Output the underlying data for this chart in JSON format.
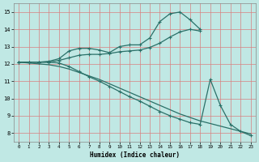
{
  "xlabel": "Humidex (Indice chaleur)",
  "bg_color": "#c0e8e4",
  "line_color": "#2a7068",
  "grid_color": "#d88080",
  "xlim": [
    -0.5,
    23.5
  ],
  "ylim": [
    7.5,
    15.5
  ],
  "xticks": [
    0,
    1,
    2,
    3,
    4,
    5,
    6,
    7,
    8,
    9,
    10,
    11,
    12,
    13,
    14,
    15,
    16,
    17,
    18,
    19,
    20,
    21,
    22,
    23
  ],
  "yticks": [
    8,
    9,
    10,
    11,
    12,
    13,
    14,
    15
  ],
  "line1_x": [
    0,
    1,
    2,
    3,
    4,
    5,
    6,
    7,
    8,
    9,
    10,
    11,
    12,
    13,
    14,
    15,
    16,
    17,
    18
  ],
  "line1_y": [
    12.1,
    12.1,
    12.1,
    12.15,
    12.3,
    12.75,
    12.9,
    12.9,
    12.8,
    12.65,
    13.0,
    13.1,
    13.1,
    13.5,
    14.45,
    14.9,
    15.0,
    14.55,
    14.0
  ],
  "line2_x": [
    0,
    1,
    2,
    3,
    4,
    5,
    6,
    7,
    8,
    9,
    10,
    11,
    12,
    13,
    14,
    15,
    16,
    17,
    18
  ],
  "line2_y": [
    12.1,
    12.1,
    12.1,
    12.1,
    12.2,
    12.35,
    12.5,
    12.55,
    12.55,
    12.6,
    12.7,
    12.75,
    12.8,
    12.95,
    13.2,
    13.55,
    13.85,
    14.0,
    13.9
  ],
  "line3_x": [
    0,
    1,
    2,
    3,
    4,
    5,
    6,
    7,
    8,
    9,
    10,
    11,
    12,
    13,
    14,
    15,
    16,
    17,
    18,
    19,
    20,
    21,
    22,
    23
  ],
  "line3_y": [
    12.1,
    12.1,
    12.1,
    12.1,
    12.05,
    11.85,
    11.55,
    11.25,
    11.0,
    10.7,
    10.4,
    10.1,
    9.85,
    9.55,
    9.25,
    9.0,
    8.8,
    8.6,
    8.5,
    11.1,
    9.6,
    8.5,
    8.1,
    7.85
  ],
  "line4_x": [
    0,
    1,
    2,
    3,
    4,
    5,
    6,
    7,
    8,
    9,
    10,
    11,
    12,
    13,
    14,
    15,
    16,
    17,
    18,
    19,
    20,
    21,
    22,
    23
  ],
  "line4_y": [
    12.1,
    12.05,
    12.0,
    11.95,
    11.85,
    11.7,
    11.5,
    11.3,
    11.1,
    10.85,
    10.6,
    10.35,
    10.1,
    9.85,
    9.6,
    9.35,
    9.1,
    8.9,
    8.7,
    8.55,
    8.4,
    8.25,
    8.1,
    7.95
  ]
}
